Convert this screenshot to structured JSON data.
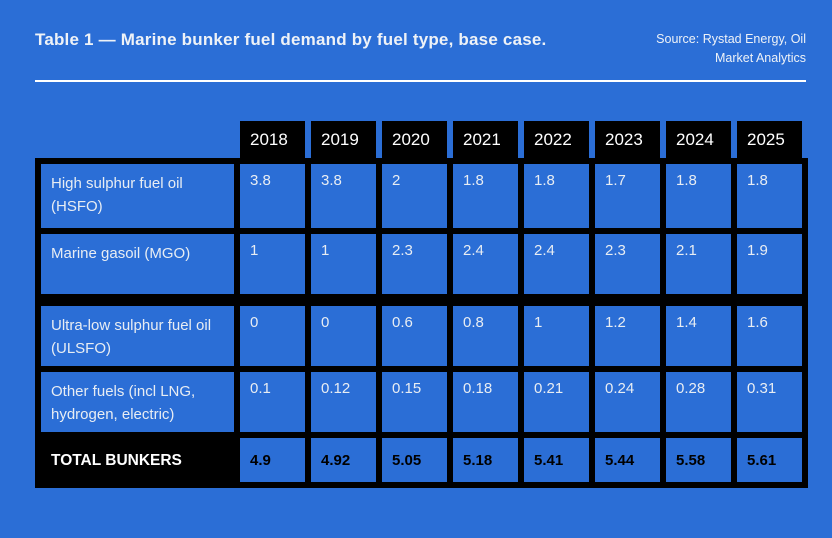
{
  "header": {
    "title": "Table 1 — Marine bunker fuel demand by fuel type, base case.",
    "source_line1": "Source: Rystad Energy, Oil",
    "source_line2": "Market Analytics"
  },
  "colors": {
    "background": "#2b6ed6",
    "grid_and_header_black": "#000000",
    "light_text": "#e8edf3",
    "white_text": "#ffffff",
    "total_value_text": "#000000"
  },
  "chart_data": {
    "type": "table",
    "title": "Table 1 — Marine bunker fuel demand by fuel type, base case.",
    "source": "Source: Rystad Energy, Oil Market Analytics",
    "columns": [
      "2018",
      "2019",
      "2020",
      "2021",
      "2022",
      "2023",
      "2024",
      "2025"
    ],
    "rows": [
      {
        "label": "High sulphur fuel oil (HSFO)",
        "values": [
          3.8,
          3.8,
          2,
          1.8,
          1.8,
          1.7,
          1.8,
          1.8
        ]
      },
      {
        "label": "Marine gasoil (MGO)",
        "values": [
          1,
          1,
          2.3,
          2.4,
          2.4,
          2.3,
          2.1,
          1.9
        ]
      },
      {
        "label": "Ultra-low sulphur fuel oil (ULSFO)",
        "values": [
          0,
          0,
          0.6,
          0.8,
          1,
          1.2,
          1.4,
          1.6
        ]
      },
      {
        "label": "Other fuels (incl LNG, hydrogen, electric)",
        "values": [
          0.1,
          0.12,
          0.15,
          0.18,
          0.21,
          0.24,
          0.28,
          0.31
        ]
      }
    ],
    "total_row": {
      "label": "TOTAL BUNKERS",
      "values": [
        4.9,
        4.92,
        5.05,
        5.18,
        5.41,
        5.44,
        5.58,
        5.61
      ]
    },
    "row_groups": [
      [
        "High sulphur fuel oil (HSFO)",
        "Marine gasoil (MGO)"
      ],
      [
        "Ultra-low sulphur fuel oil (ULSFO)",
        "Other fuels (incl LNG, hydrogen, electric)"
      ]
    ]
  }
}
